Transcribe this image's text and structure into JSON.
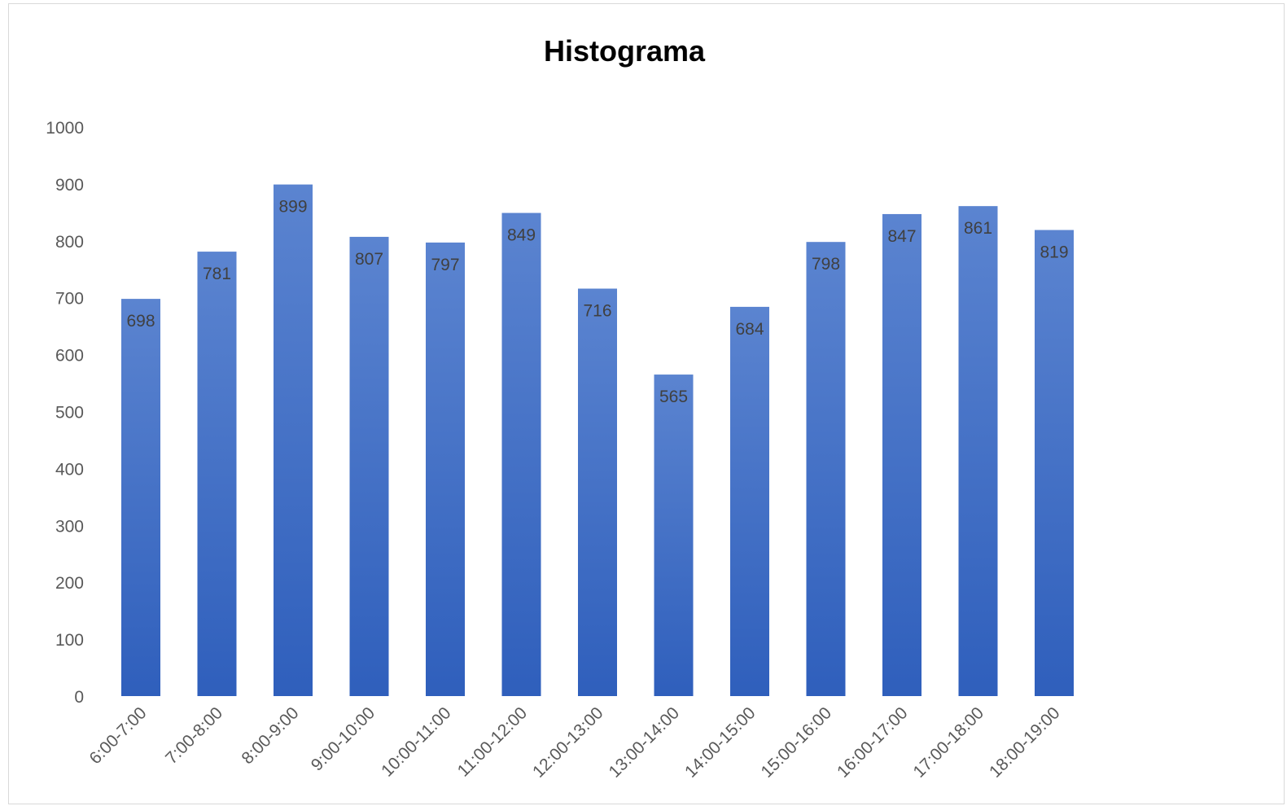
{
  "chart_data": {
    "type": "bar",
    "title": "Histograma",
    "xlabel": "",
    "ylabel": "",
    "categories": [
      "6:00-7:00",
      "7:00-8:00",
      "8:00-9:00",
      "9:00-10:00",
      "10:00-11:00",
      "11:00-12:00",
      "12:00-13:00",
      "13:00-14:00",
      "14:00-15:00",
      "15:00-16:00",
      "16:00-17:00",
      "17:00-18:00",
      "18:00-19:00"
    ],
    "values": [
      698,
      781,
      899,
      807,
      797,
      849,
      716,
      565,
      684,
      798,
      847,
      861,
      819
    ],
    "ylim": [
      0,
      1000
    ],
    "yticks": [
      0,
      100,
      200,
      300,
      400,
      500,
      600,
      700,
      800,
      900,
      1000
    ],
    "grid": false,
    "legend": "none",
    "data_labels": "inside-top",
    "colors": {
      "bar_top": "#5b84d0",
      "bar_bottom": "#2f5fbc",
      "title": "#000000",
      "tick": "#595959",
      "label": "#404040"
    }
  }
}
